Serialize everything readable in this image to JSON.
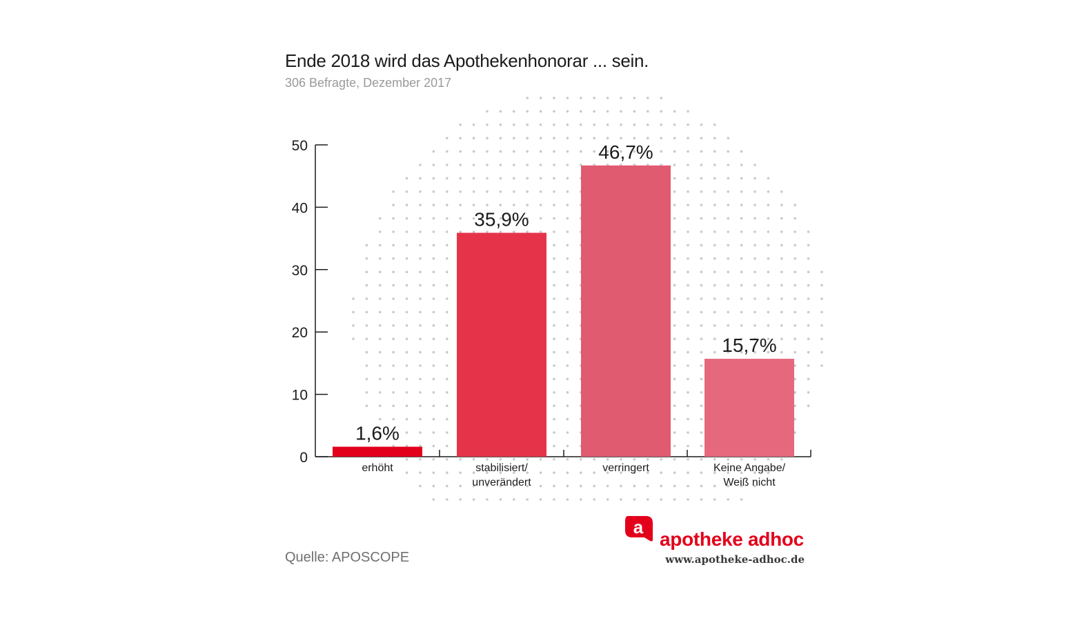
{
  "chart_data": {
    "type": "bar",
    "title": "Ende 2018 wird das Apothekenhonorar ... sein.",
    "subtitle": "306 Befragte, Dezember 2017",
    "categories": [
      [
        "erhöht"
      ],
      [
        "stabilisiert/",
        "unverändert"
      ],
      [
        "verringert"
      ],
      [
        "Keine Angabe/",
        "Weiß nicht"
      ]
    ],
    "values": [
      1.6,
      35.9,
      46.7,
      15.7
    ],
    "value_labels": [
      "1,6%",
      "35,9%",
      "46,7%",
      "15,7%"
    ],
    "bar_colors": [
      "#e3001b",
      "#e5344a",
      "#e05b70",
      "#e5687c"
    ],
    "ylim": [
      0,
      50
    ],
    "yticks": [
      0,
      10,
      20,
      30,
      40,
      50
    ],
    "xlabel": "",
    "ylabel": "",
    "grid": false
  },
  "source": "Quelle: APOSCOPE",
  "brand": {
    "logo_letter": "a",
    "name": "apotheke adhoc",
    "url": "www.apotheke-adhoc.de",
    "color": "#e3001b"
  }
}
